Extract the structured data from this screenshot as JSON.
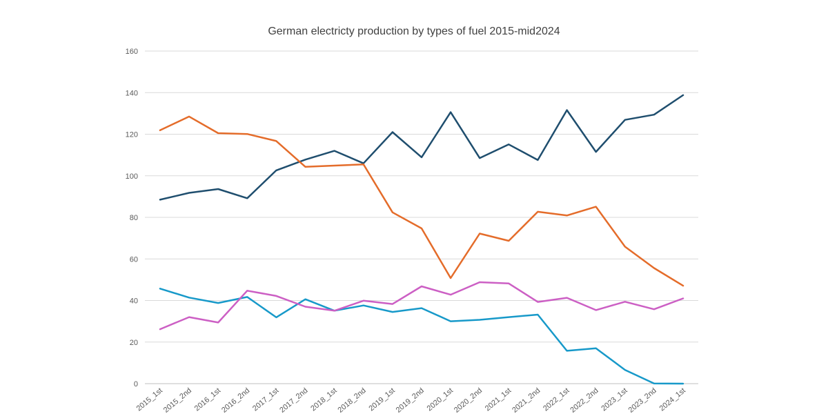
{
  "chart_data": {
    "type": "line",
    "title": "German electricty production by types of fuel 2015-mid2024",
    "xlabel": "",
    "ylabel": "",
    "ylim": [
      0,
      160
    ],
    "yticks": [
      0,
      20,
      40,
      60,
      80,
      100,
      120,
      140,
      160
    ],
    "grid": true,
    "legend": "none",
    "categories": [
      "2015_1st",
      "2015_2nd",
      "2016_1st",
      "2016_2nd",
      "2017_1st",
      "2017_2nd",
      "2018_1st",
      "2018_2nd",
      "2019_1st",
      "2019_2nd",
      "2020_1st",
      "2020_2nd",
      "2021_1st",
      "2021_2nd",
      "2022_1st",
      "2022_2nd",
      "2023_1st",
      "2023_2nd",
      "2024_1st"
    ],
    "series": [
      {
        "color": "#1f4e6e",
        "values": [
          88.5,
          91.8,
          93.6,
          89.2,
          102.6,
          107.8,
          112.0,
          106.0,
          121.0,
          108.9,
          130.6,
          108.5,
          115.1,
          107.6,
          131.6,
          111.5,
          126.9,
          129.4,
          138.8
        ]
      },
      {
        "color": "#e46c2a",
        "values": [
          121.9,
          128.5,
          120.5,
          120.1,
          116.7,
          104.3,
          104.9,
          105.5,
          82.4,
          74.7,
          50.8,
          72.2,
          68.7,
          82.7,
          80.9,
          85.1,
          65.9,
          55.6,
          47.1
        ]
      },
      {
        "color": "#1799c9",
        "values": [
          45.7,
          41.4,
          38.8,
          41.7,
          31.9,
          40.6,
          35.1,
          37.6,
          34.5,
          36.3,
          30.0,
          30.7,
          32.0,
          33.2,
          15.8,
          17.0,
          6.6,
          0.1,
          0.0
        ]
      },
      {
        "color": "#cc5fc4",
        "values": [
          26.2,
          32.0,
          29.4,
          44.7,
          42.2,
          37.0,
          35.1,
          39.9,
          38.3,
          46.8,
          42.8,
          48.8,
          48.2,
          39.3,
          41.3,
          35.4,
          39.4,
          35.8,
          41.0
        ]
      }
    ]
  }
}
